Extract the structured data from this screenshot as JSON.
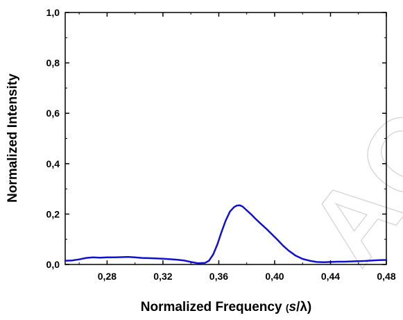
{
  "watermark": "ACCEPTED",
  "chart_data": {
    "type": "line",
    "xlabel": "Normalized Frequency",
    "xlabel_unit_open": "(",
    "xlabel_unit_italic": "s",
    "xlabel_unit_rest": "/λ)",
    "ylabel": "Normalized Intensity",
    "xlim": [
      0.25,
      0.48
    ],
    "ylim": [
      0.0,
      1.0
    ],
    "x_ticks": [
      0.28,
      0.32,
      0.36,
      0.4,
      0.44,
      0.48
    ],
    "x_tick_labels": [
      "0,28",
      "0,32",
      "0,36",
      "0,40",
      "0,44",
      "0,48"
    ],
    "y_ticks": [
      0.0,
      0.2,
      0.4,
      0.6,
      0.8,
      1.0
    ],
    "y_tick_labels": [
      "0,0",
      "0,2",
      "0,4",
      "0,6",
      "0,8",
      "1,0"
    ],
    "grid": false,
    "legend": "none",
    "series": [
      {
        "color": "#1010d0",
        "x": [
          0.25,
          0.255,
          0.26,
          0.265,
          0.27,
          0.275,
          0.28,
          0.285,
          0.29,
          0.295,
          0.3,
          0.305,
          0.31,
          0.315,
          0.32,
          0.325,
          0.33,
          0.335,
          0.34,
          0.345,
          0.35,
          0.353,
          0.356,
          0.359,
          0.362,
          0.365,
          0.368,
          0.371,
          0.373,
          0.375,
          0.377,
          0.38,
          0.383,
          0.386,
          0.39,
          0.394,
          0.398,
          0.402,
          0.406,
          0.41,
          0.415,
          0.42,
          0.425,
          0.43,
          0.435,
          0.44,
          0.445,
          0.45,
          0.455,
          0.46,
          0.465,
          0.47,
          0.475,
          0.48
        ],
        "y": [
          0.015,
          0.016,
          0.02,
          0.026,
          0.028,
          0.027,
          0.028,
          0.028,
          0.029,
          0.03,
          0.028,
          0.026,
          0.025,
          0.024,
          0.023,
          0.021,
          0.019,
          0.016,
          0.01,
          0.005,
          0.006,
          0.015,
          0.04,
          0.08,
          0.13,
          0.175,
          0.21,
          0.228,
          0.234,
          0.235,
          0.23,
          0.215,
          0.2,
          0.183,
          0.162,
          0.142,
          0.12,
          0.098,
          0.075,
          0.055,
          0.035,
          0.022,
          0.015,
          0.01,
          0.009,
          0.01,
          0.011,
          0.011,
          0.012,
          0.013,
          0.014,
          0.016,
          0.017,
          0.018
        ]
      }
    ]
  }
}
